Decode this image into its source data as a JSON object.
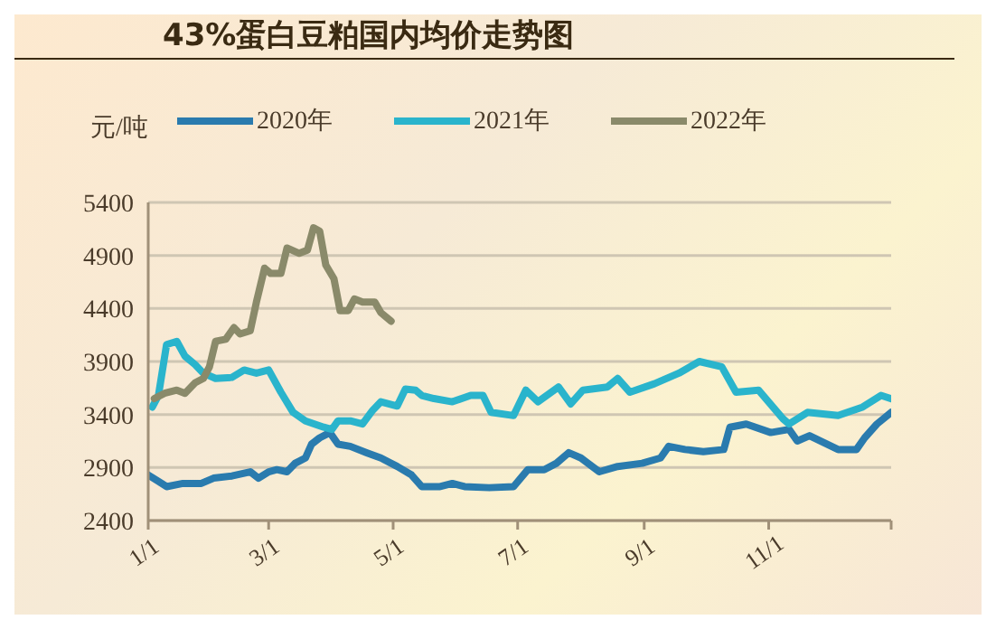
{
  "chart_data": {
    "type": "line",
    "title": "43%蛋白豆粕国内均价走势图",
    "ylabel": "元/吨",
    "xlim": [
      "--01-01",
      "--12-31"
    ],
    "xticks": [
      {
        "value": "--01-01",
        "label": "1/1"
      },
      {
        "value": "--03-01",
        "label": "3/1"
      },
      {
        "value": "--05-01",
        "label": "5/1"
      },
      {
        "value": "--07-01",
        "label": "7/1"
      },
      {
        "value": "--09-01",
        "label": "9/1"
      },
      {
        "value": "--11-01",
        "label": "11/1"
      },
      {
        "value": "--12-31",
        "label": null
      }
    ],
    "ylim": [
      2400,
      5400
    ],
    "yticks": [
      2400,
      2900,
      3400,
      3900,
      4400,
      4900,
      5400
    ],
    "grid": "y",
    "legend": "top",
    "marker": "none",
    "line_style": "solid",
    "series": [
      {
        "name": "2020年",
        "color": "#2a7bae",
        "x": [
          "--01-01",
          "--01-06",
          "--01-10",
          "--01-18",
          "--01-27",
          "--02-02",
          "--02-11",
          "--02-20",
          "--02-24",
          "--03-01",
          "--03-05",
          "--03-10",
          "--03-14",
          "--03-19",
          "--03-22",
          "--03-26",
          "--03-31",
          "--04-04",
          "--04-10",
          "--04-18",
          "--04-25",
          "--05-03",
          "--05-10",
          "--05-15",
          "--05-24",
          "--05-30",
          "--06-05",
          "--06-17",
          "--06-29",
          "--07-06",
          "--07-14",
          "--07-20",
          "--07-26",
          "--08-01",
          "--08-10",
          "--08-19",
          "--08-31",
          "--09-09",
          "--09-13",
          "--09-21",
          "--09-30",
          "--10-10",
          "--10-13",
          "--10-21",
          "--11-02",
          "--11-11",
          "--11-15",
          "--11-21",
          "--12-05",
          "--12-14",
          "--12-18",
          "--12-24",
          "--12-31"
        ],
        "values": [
          2830,
          2770,
          2720,
          2750,
          2750,
          2800,
          2820,
          2860,
          2800,
          2860,
          2880,
          2860,
          2940,
          2990,
          3120,
          3180,
          3230,
          3120,
          3100,
          3040,
          2990,
          2910,
          2830,
          2720,
          2720,
          2750,
          2720,
          2710,
          2720,
          2880,
          2880,
          2940,
          3040,
          2990,
          2860,
          2910,
          2940,
          2990,
          3100,
          3070,
          3050,
          3070,
          3280,
          3310,
          3230,
          3260,
          3150,
          3200,
          3070,
          3070,
          3180,
          3310,
          3420
        ]
      },
      {
        "name": "2021年",
        "color": "#2ab4cc",
        "x": [
          "--01-03",
          "--01-06",
          "--01-10",
          "--01-15",
          "--01-19",
          "--01-24",
          "--01-28",
          "--02-03",
          "--02-11",
          "--02-17",
          "--02-23",
          "--03-01",
          "--03-07",
          "--03-13",
          "--03-19",
          "--03-28",
          "--04-01",
          "--04-04",
          "--04-10",
          "--04-16",
          "--04-21",
          "--04-25",
          "--05-03",
          "--05-07",
          "--05-12",
          "--05-15",
          "--05-21",
          "--05-30",
          "--06-08",
          "--06-14",
          "--06-18",
          "--06-29",
          "--07-05",
          "--07-11",
          "--07-21",
          "--07-27",
          "--08-02",
          "--08-14",
          "--08-19",
          "--08-25",
          "--09-06",
          "--09-18",
          "--09-28",
          "--10-09",
          "--10-16",
          "--10-27",
          "--11-08",
          "--11-11",
          "--11-20",
          "--12-05",
          "--12-17",
          "--12-26",
          "--12-31"
        ],
        "values": [
          3470,
          3580,
          4060,
          4090,
          3950,
          3870,
          3790,
          3740,
          3750,
          3820,
          3790,
          3820,
          3610,
          3420,
          3340,
          3280,
          3260,
          3340,
          3340,
          3310,
          3440,
          3520,
          3480,
          3640,
          3630,
          3580,
          3550,
          3520,
          3580,
          3580,
          3420,
          3390,
          3630,
          3520,
          3660,
          3500,
          3630,
          3660,
          3740,
          3610,
          3690,
          3790,
          3900,
          3850,
          3610,
          3630,
          3360,
          3310,
          3420,
          3390,
          3470,
          3580,
          3550
        ]
      },
      {
        "name": "2022年",
        "color": "#8a8a6a",
        "x": [
          "--01-04",
          "--01-09",
          "--01-15",
          "--01-19",
          "--01-24",
          "--01-28",
          "--01-31",
          "--02-03",
          "--02-08",
          "--02-12",
          "--02-15",
          "--02-20",
          "--02-23",
          "--02-27",
          "--03-02",
          "--03-07",
          "--03-10",
          "--03-16",
          "--03-20",
          "--03-23",
          "--03-26",
          "--03-29",
          "--04-02",
          "--04-05",
          "--04-09",
          "--04-12",
          "--04-16",
          "--04-22",
          "--04-25",
          "--04-30"
        ],
        "values": [
          3550,
          3600,
          3630,
          3600,
          3700,
          3740,
          3850,
          4090,
          4110,
          4220,
          4160,
          4190,
          4460,
          4780,
          4730,
          4730,
          4970,
          4920,
          4950,
          5160,
          5130,
          4810,
          4680,
          4380,
          4380,
          4490,
          4460,
          4460,
          4360,
          4280
        ]
      }
    ]
  }
}
